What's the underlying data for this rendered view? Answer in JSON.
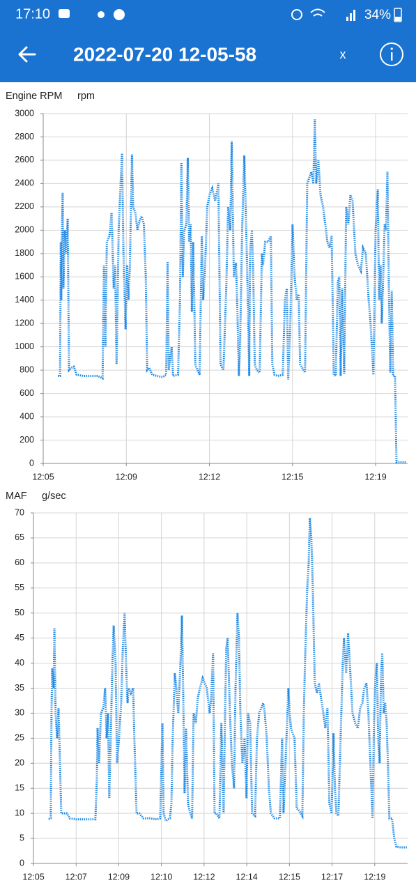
{
  "status_bar": {
    "time": "17:10",
    "battery": "34%"
  },
  "app_bar": {
    "title": "2022-07-20 12-05-58",
    "close": "x"
  },
  "chart_data": [
    {
      "type": "line",
      "title": "Engine RPM",
      "y_unit": "rpm",
      "color": "#1e88e5",
      "grid": true,
      "xlim": [
        0,
        15.35
      ],
      "ylim": [
        0,
        3000
      ],
      "xticks": [
        {
          "value": 0,
          "label": "12:05"
        },
        {
          "value": 3.5,
          "label": "12:09"
        },
        {
          "value": 7,
          "label": "12:12"
        },
        {
          "value": 10.5,
          "label": "12:15"
        },
        {
          "value": 14,
          "label": "12:19"
        }
      ],
      "yticks": [
        0,
        200,
        400,
        600,
        800,
        1000,
        1200,
        1400,
        1600,
        1800,
        2000,
        2200,
        2400,
        2600,
        2800,
        3000
      ],
      "x": [
        0.62,
        0.71,
        0.74,
        0.76,
        0.79,
        0.82,
        0.85,
        0.91,
        0.97,
        1.03,
        1.09,
        1.18,
        1.29,
        1.41,
        1.71,
        2.29,
        2.5,
        2.56,
        2.62,
        2.68,
        2.79,
        2.88,
        2.97,
        3.03,
        3.09,
        3.18,
        3.26,
        3.32,
        3.38,
        3.47,
        3.53,
        3.59,
        3.65,
        3.74,
        3.79,
        3.88,
        3.97,
        4.06,
        4.15,
        4.24,
        4.32,
        4.38,
        4.47,
        4.59,
        4.79,
        5.03,
        5.18,
        5.24,
        5.29,
        5.41,
        5.47,
        5.68,
        5.76,
        5.82,
        5.88,
        5.94,
        6.03,
        6.09,
        6.15,
        6.21,
        6.26,
        6.32,
        6.41,
        6.5,
        6.59,
        6.68,
        6.74,
        6.82,
        6.91,
        7,
        7.12,
        7.24,
        7.38,
        7.47,
        7.59,
        7.71,
        7.79,
        7.88,
        7.94,
        8.03,
        8.12,
        8.18,
        8.24,
        8.29,
        8.38,
        8.47,
        8.53,
        8.62,
        8.68,
        8.71,
        8.79,
        8.85,
        8.91,
        9,
        9.12,
        9.21,
        9.26,
        9.35,
        9.47,
        9.59,
        9.65,
        9.74,
        9.88,
        10.09,
        10.18,
        10.26,
        10.32,
        10.41,
        10.5,
        10.59,
        10.68,
        10.76,
        10.82,
        10.91,
        11.03,
        11.12,
        11.21,
        11.29,
        11.38,
        11.44,
        11.5,
        11.59,
        11.68,
        11.79,
        11.88,
        11.97,
        12.06,
        12.15,
        12.24,
        12.32,
        12.41,
        12.47,
        12.53,
        12.59,
        12.68,
        12.76,
        12.85,
        12.94,
        13.03,
        13.15,
        13.26,
        13.38,
        13.47,
        13.59,
        13.71,
        13.79,
        13.91,
        14,
        14.09,
        14.15,
        14.21,
        14.26,
        14.32,
        14.38,
        14.44,
        14.5,
        14.56,
        14.62,
        14.68,
        14.74,
        14.82,
        14.88,
        15.09,
        15.3
      ],
      "values": [
        750,
        750,
        1900,
        1400,
        2000,
        2320,
        1500,
        2000,
        1800,
        2100,
        800,
        820,
        830,
        760,
        750,
        750,
        730,
        1700,
        1000,
        1900,
        1950,
        2150,
        1500,
        1700,
        850,
        2000,
        2400,
        2660,
        1800,
        1150,
        1700,
        1400,
        1700,
        2650,
        2200,
        2150,
        2000,
        2080,
        2120,
        2050,
        1600,
        800,
        820,
        760,
        750,
        740,
        760,
        1730,
        800,
        1000,
        750,
        760,
        1400,
        2580,
        1600,
        2000,
        2050,
        2620,
        1900,
        2050,
        1300,
        1900,
        840,
        800,
        760,
        1950,
        1400,
        1700,
        2200,
        2300,
        2360,
        2250,
        2400,
        850,
        800,
        1500,
        2200,
        2000,
        2760,
        1600,
        1720,
        1300,
        750,
        1000,
        2000,
        2640,
        2200,
        1400,
        750,
        1800,
        2000,
        1600,
        850,
        800,
        780,
        1800,
        1700,
        1900,
        1900,
        1950,
        850,
        760,
        750,
        760,
        1400,
        1500,
        720,
        1200,
        2050,
        1600,
        1400,
        1450,
        850,
        820,
        780,
        2400,
        2450,
        2500,
        2400,
        2950,
        2400,
        2600,
        2300,
        2200,
        2050,
        1900,
        1850,
        1950,
        760,
        750,
        1550,
        1600,
        750,
        1500,
        770,
        2200,
        2050,
        2300,
        2250,
        1800,
        1700,
        1650,
        1850,
        1800,
        1400,
        1200,
        760,
        2000,
        2350,
        1400,
        1700,
        1200,
        1600,
        2050,
        2000,
        2500,
        1500,
        780,
        1480,
        750,
        750,
        10,
        10,
        10
      ]
    },
    {
      "type": "line",
      "title": "MAF",
      "y_unit": "g/sec",
      "color": "#1e88e5",
      "grid": true,
      "xlim": [
        0,
        15.35
      ],
      "ylim": [
        0,
        70
      ],
      "xticks": [
        {
          "value": 0,
          "label": "12:05"
        },
        {
          "value": 1.75,
          "label": "12:07"
        },
        {
          "value": 3.5,
          "label": "12:09"
        },
        {
          "value": 5.25,
          "label": "12:10"
        },
        {
          "value": 7,
          "label": "12:12"
        },
        {
          "value": 8.75,
          "label": "12:14"
        },
        {
          "value": 10.5,
          "label": "12:15"
        },
        {
          "value": 12.25,
          "label": "12:17"
        },
        {
          "value": 14,
          "label": "12:19"
        }
      ],
      "yticks": [
        0,
        5,
        10,
        15,
        20,
        25,
        30,
        35,
        40,
        45,
        50,
        55,
        60,
        65,
        70
      ],
      "x": [
        0.63,
        0.71,
        0.74,
        0.77,
        0.83,
        0.86,
        0.91,
        0.97,
        1.03,
        1.09,
        1.14,
        1.26,
        1.37,
        1.49,
        1.77,
        2.2,
        2.54,
        2.6,
        2.63,
        2.69,
        2.77,
        2.86,
        2.94,
        3,
        3.06,
        3.11,
        3.17,
        3.23,
        3.29,
        3.37,
        3.43,
        3.51,
        3.6,
        3.66,
        3.74,
        3.8,
        3.86,
        3.91,
        4,
        4.09,
        4.14,
        4.23,
        4.34,
        4.51,
        4.77,
        5.06,
        5.2,
        5.29,
        5.34,
        5.43,
        5.6,
        5.66,
        5.71,
        5.8,
        5.86,
        5.94,
        6.03,
        6.09,
        6.14,
        6.2,
        6.26,
        6.34,
        6.43,
        6.51,
        6.57,
        6.66,
        6.74,
        6.83,
        6.94,
        7.03,
        7.11,
        7.23,
        7.29,
        7.37,
        7.43,
        7.51,
        7.63,
        7.71,
        7.8,
        7.86,
        7.91,
        7.97,
        8.06,
        8.14,
        8.23,
        8.29,
        8.37,
        8.43,
        8.49,
        8.57,
        8.66,
        8.74,
        8.8,
        8.89,
        8.97,
        9.09,
        9.17,
        9.26,
        9.34,
        9.43,
        9.49,
        9.57,
        9.66,
        9.74,
        9.89,
        10.11,
        10.2,
        10.26,
        10.34,
        10.46,
        10.51,
        10.57,
        10.63,
        10.71,
        10.8,
        10.91,
        11.03,
        11.09,
        11.14,
        11.23,
        11.29,
        11.34,
        11.4,
        11.46,
        11.54,
        11.63,
        11.71,
        11.8,
        11.89,
        11.97,
        12.06,
        12.14,
        12.23,
        12.31,
        12.37,
        12.43,
        12.51,
        12.6,
        12.69,
        12.74,
        12.83,
        12.91,
        13,
        13.09,
        13.2,
        13.31,
        13.4,
        13.49,
        13.57,
        13.66,
        13.74,
        13.86,
        13.91,
        13.97,
        14.03,
        14.09,
        14.14,
        14.2,
        14.26,
        14.31,
        14.37,
        14.43,
        14.49,
        14.54,
        14.6,
        14.71,
        14.8,
        14.89,
        15.06,
        15.34
      ],
      "values": [
        8.8,
        9,
        30,
        39,
        35,
        47,
        30,
        25,
        31,
        20,
        10,
        10,
        10,
        9,
        8.8,
        8.8,
        8.8,
        17,
        27,
        20,
        30,
        31,
        35,
        25,
        30,
        13,
        25,
        38,
        47.5,
        40,
        20,
        25,
        32,
        42,
        50,
        40,
        32,
        35,
        34,
        35,
        25,
        10,
        10,
        9,
        9,
        8.8,
        9,
        28,
        10,
        8.5,
        9,
        12,
        25,
        38,
        35,
        30,
        40,
        49.5,
        35,
        14,
        27,
        12,
        10,
        9,
        30,
        28,
        33,
        35,
        37,
        36,
        35,
        30,
        33,
        42,
        10,
        10,
        9,
        28,
        10,
        30,
        43,
        45,
        30,
        20,
        15,
        35,
        50,
        45,
        30,
        20,
        25,
        13,
        30,
        28,
        10,
        9.5,
        25,
        30,
        31,
        32,
        30,
        25,
        15,
        10,
        9,
        9,
        25,
        10,
        20,
        35,
        30,
        27,
        26,
        25,
        11,
        10.5,
        9.5,
        30,
        40,
        55,
        60,
        69,
        65,
        55,
        36,
        34,
        36,
        33,
        30,
        27,
        31,
        12,
        10,
        26,
        15,
        10,
        9.5,
        25,
        40,
        45,
        38,
        46,
        38,
        30,
        28,
        27,
        31,
        32,
        35,
        36,
        30,
        15,
        9,
        28,
        37,
        40,
        25,
        20,
        38,
        42,
        30,
        32,
        28,
        20,
        9,
        9,
        5,
        3.3,
        3.2,
        3.2
      ]
    }
  ]
}
